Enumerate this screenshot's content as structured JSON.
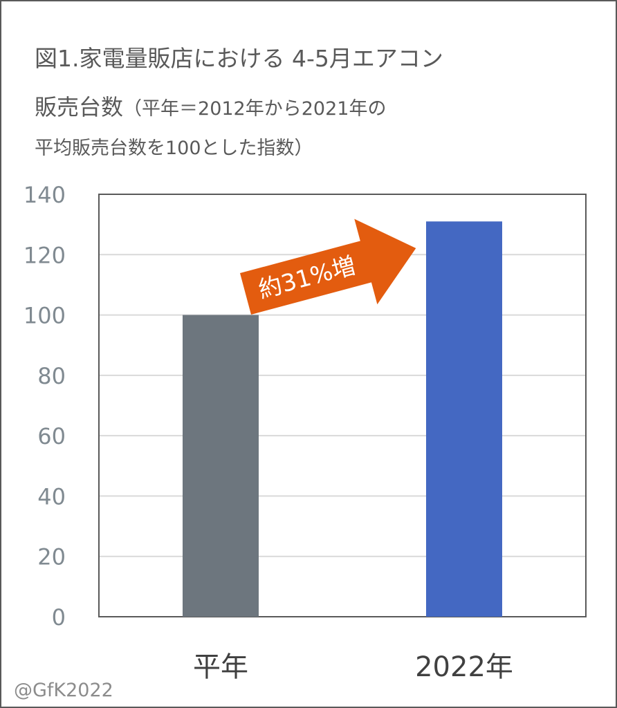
{
  "title": {
    "line1": "図1.家電量販店における 4-5月エアコン",
    "line2_main": "販売台数",
    "line2_sub": "（平年＝2012年から2021年の",
    "line3": "平均販売台数を100とした指数）"
  },
  "credit": "@GfK2022",
  "colors": {
    "bar_normal": "#6d767e",
    "bar_2022": "#4468c2",
    "arrow": "#e35c0f",
    "axis_text": "#808a91",
    "category_text": "#404040",
    "grid": "#d9d9d9"
  },
  "chart_data": {
    "type": "bar",
    "categories": [
      "平年",
      "2022年"
    ],
    "values": [
      100,
      131
    ],
    "ylim": [
      0,
      140
    ],
    "yticks": [
      0,
      20,
      40,
      60,
      80,
      100,
      120,
      140
    ],
    "grid": true,
    "annotation": "約31%増"
  }
}
